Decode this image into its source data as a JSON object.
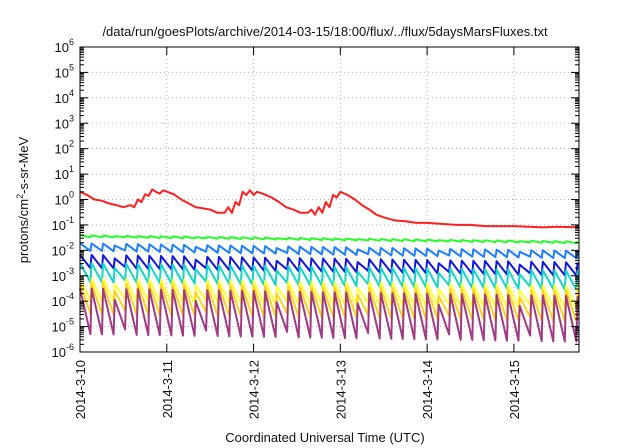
{
  "chart_data": {
    "type": "line",
    "title": "/data/run/goesPlots/archive/2014-03-15/18:00/flux/../flux/5daysMarsFluxes.txt",
    "ylabel": {
      "prefix": "protons/cm",
      "superscript": "2",
      "suffix": "-s-sr-MeV"
    },
    "xlabel": "Coordinated Universal Time (UTC)",
    "x_range": [
      "2014-03-10T00:00",
      "2014-03-15T18:00"
    ],
    "x_ticks": [
      "2014-3-10",
      "2014-3-11",
      "2014-3-12",
      "2014-3-13",
      "2014-3-14",
      "2014-3-15"
    ],
    "y_scale": "log",
    "ylim": [
      1e-06,
      1000000.0
    ],
    "y_ticks": [
      {
        "base": "10",
        "exp": "-6"
      },
      {
        "base": "10",
        "exp": "-5"
      },
      {
        "base": "10",
        "exp": "-4"
      },
      {
        "base": "10",
        "exp": "-3"
      },
      {
        "base": "10",
        "exp": "-2"
      },
      {
        "base": "10",
        "exp": "-1"
      },
      {
        "base": "10",
        "exp": "0"
      },
      {
        "base": "10",
        "exp": "1"
      },
      {
        "base": "10",
        "exp": "2"
      },
      {
        "base": "10",
        "exp": "3"
      },
      {
        "base": "10",
        "exp": "4"
      },
      {
        "base": "10",
        "exp": "5"
      },
      {
        "base": "10",
        "exp": "6"
      }
    ],
    "grid": true,
    "colors": [
      "#ff1e1e",
      "#22ff22",
      "#1a7fff",
      "#1515e0",
      "#12d6c8",
      "#ffff33",
      "#ffd21a",
      "#a03a84"
    ],
    "series": [
      {
        "color": "#ff1e1e",
        "points": [
          [
            "2014-03-10T00:00",
            2.0
          ],
          [
            "2014-03-10T02:00",
            1.5
          ],
          [
            "2014-03-10T04:00",
            1.0
          ],
          [
            "2014-03-10T06:00",
            0.9
          ],
          [
            "2014-03-10T08:00",
            0.7
          ],
          [
            "2014-03-10T10:00",
            0.6
          ],
          [
            "2014-03-10T12:00",
            0.5
          ],
          [
            "2014-03-10T14:00",
            0.6
          ],
          [
            "2014-03-10T15:00",
            0.5
          ],
          [
            "2014-03-10T16:00",
            1.0
          ],
          [
            "2014-03-10T17:00",
            0.8
          ],
          [
            "2014-03-10T18:00",
            1.6
          ],
          [
            "2014-03-10T19:00",
            1.4
          ],
          [
            "2014-03-10T20:00",
            2.5
          ],
          [
            "2014-03-10T21:00",
            2.0
          ],
          [
            "2014-03-10T22:00",
            1.7
          ],
          [
            "2014-03-10T23:00",
            2.3
          ],
          [
            "2014-03-11T02:00",
            1.6
          ],
          [
            "2014-03-11T04:00",
            1.0
          ],
          [
            "2014-03-11T06:00",
            0.7
          ],
          [
            "2014-03-11T08:00",
            0.5
          ],
          [
            "2014-03-11T10:00",
            0.45
          ],
          [
            "2014-03-11T12:00",
            0.4
          ],
          [
            "2014-03-11T14:00",
            0.3
          ],
          [
            "2014-03-11T16:00",
            0.3
          ],
          [
            "2014-03-11T17:00",
            0.5
          ],
          [
            "2014-03-11T18:00",
            0.3
          ],
          [
            "2014-03-11T19:00",
            0.8
          ],
          [
            "2014-03-11T20:00",
            0.6
          ],
          [
            "2014-03-11T21:00",
            2.0
          ],
          [
            "2014-03-11T22:00",
            1.5
          ],
          [
            "2014-03-11T23:00",
            2.3
          ],
          [
            "2014-03-12T00:00",
            1.5
          ],
          [
            "2014-03-12T01:00",
            2.0
          ],
          [
            "2014-03-12T03:00",
            1.6
          ],
          [
            "2014-03-12T05:00",
            1.2
          ],
          [
            "2014-03-12T07:00",
            0.8
          ],
          [
            "2014-03-12T09:00",
            0.5
          ],
          [
            "2014-03-12T11:00",
            0.4
          ],
          [
            "2014-03-12T13:00",
            0.3
          ],
          [
            "2014-03-12T15:00",
            0.3
          ],
          [
            "2014-03-12T16:00",
            0.4
          ],
          [
            "2014-03-12T17:00",
            0.25
          ],
          [
            "2014-03-12T18:00",
            0.5
          ],
          [
            "2014-03-12T19:00",
            0.3
          ],
          [
            "2014-03-12T20:00",
            0.8
          ],
          [
            "2014-03-12T21:00",
            0.5
          ],
          [
            "2014-03-12T22:00",
            1.5
          ],
          [
            "2014-03-12T23:00",
            1.2
          ],
          [
            "2014-03-13T00:00",
            2.0
          ],
          [
            "2014-03-13T02:00",
            1.5
          ],
          [
            "2014-03-13T04:00",
            1.0
          ],
          [
            "2014-03-13T06:00",
            0.6
          ],
          [
            "2014-03-13T08:00",
            0.4
          ],
          [
            "2014-03-13T10:00",
            0.25
          ],
          [
            "2014-03-13T12:00",
            0.2
          ],
          [
            "2014-03-13T15:00",
            0.15
          ],
          [
            "2014-03-13T18:00",
            0.14
          ],
          [
            "2014-03-13T21:00",
            0.12
          ],
          [
            "2014-03-14T00:00",
            0.12
          ],
          [
            "2014-03-14T04:00",
            0.11
          ],
          [
            "2014-03-14T08:00",
            0.1
          ],
          [
            "2014-03-14T12:00",
            0.1
          ],
          [
            "2014-03-14T16:00",
            0.09
          ],
          [
            "2014-03-14T20:00",
            0.09
          ],
          [
            "2014-03-15T00:00",
            0.09
          ],
          [
            "2014-03-15T04:00",
            0.085
          ],
          [
            "2014-03-15T08:00",
            0.08
          ],
          [
            "2014-03-15T12:00",
            0.085
          ],
          [
            "2014-03-15T18:00",
            0.08
          ]
        ]
      },
      {
        "color": "#22ff22",
        "t0": "2014-03-10T00:00",
        "t1": "2014-03-15T18:00",
        "base_start": 0.035,
        "base_end": 0.02,
        "amplitude": 0.05,
        "period_hours": 3.2
      },
      {
        "color": "#1a7fff",
        "t0": "2014-03-10T00:00",
        "t1": "2014-03-15T18:00",
        "base_start": 0.012,
        "base_end": 0.006,
        "amplitude": 0.2,
        "period_hours": 3.2
      },
      {
        "color": "#1515e0",
        "t0": "2014-03-10T00:00",
        "t1": "2014-03-15T18:00",
        "base_start": 0.003,
        "base_end": 0.0015,
        "amplitude": 0.35,
        "period_hours": 3.2
      },
      {
        "color": "#12d6c8",
        "t0": "2014-03-10T00:00",
        "t1": "2014-03-15T18:00",
        "base_start": 0.001,
        "base_end": 0.0005,
        "amplitude": 0.5,
        "period_hours": 3.2
      },
      {
        "color": "#ffff33",
        "t0": "2014-03-10T00:00",
        "t1": "2014-03-15T18:00",
        "base_start": 0.0002,
        "base_end": 0.0001,
        "amplitude": 0.6,
        "period_hours": 3.2
      },
      {
        "color": "#ffd21a",
        "t0": "2014-03-10T00:00",
        "t1": "2014-03-15T18:00",
        "base_start": 8e-05,
        "base_end": 4e-05,
        "amplitude": 0.8,
        "period_hours": 3.2
      },
      {
        "color": "#a03a84",
        "t0": "2014-03-10T00:00",
        "t1": "2014-03-15T18:00",
        "base_start": 2e-05,
        "base_end": 1e-05,
        "amplitude": 1.2,
        "period_hours": 3.2
      }
    ]
  }
}
